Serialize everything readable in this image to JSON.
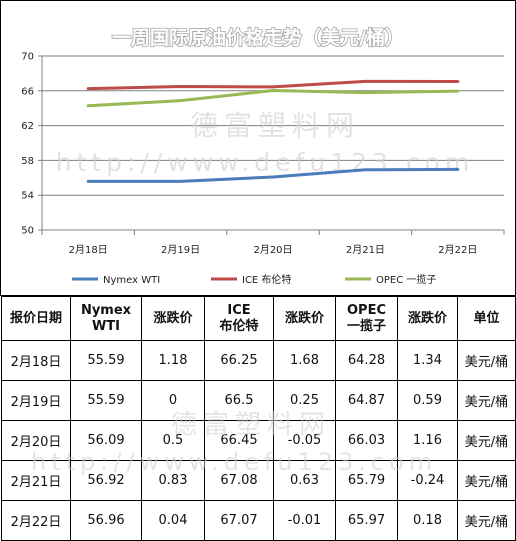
{
  "chart_data": {
    "type": "line",
    "title": "一周国际原油价格走势（美元/桶）",
    "categories": [
      "2月18日",
      "2月19日",
      "2月20日",
      "2月21日",
      "2月22日"
    ],
    "series": [
      {
        "name": "Nymex WTI",
        "color": "#4a7ebb",
        "values": [
          55.59,
          55.59,
          56.09,
          56.92,
          56.96
        ]
      },
      {
        "name": "ICE 布伦特",
        "color": "#be4b48",
        "values": [
          66.25,
          66.5,
          66.45,
          67.08,
          67.07
        ]
      },
      {
        "name": "OPEC 一揽子",
        "color": "#98b954",
        "values": [
          64.28,
          64.87,
          66.03,
          65.79,
          65.97
        ]
      }
    ],
    "yticks": [
      "50",
      "54",
      "58",
      "62",
      "66",
      "70"
    ],
    "ylim": [
      50,
      70
    ],
    "grid": true,
    "legend_position": "bottom"
  },
  "watermark": {
    "name": "德富塑料网",
    "url": "http://www.defu123.com"
  },
  "table": {
    "headers": [
      "报价日期",
      "Nymex WTI",
      "涨跌价",
      "ICE 布伦特",
      "涨跌价",
      "OPEC 一揽子",
      "涨跌价",
      "单位"
    ],
    "rows": [
      [
        "2月18日",
        "55.59",
        "1.18",
        "66.25",
        "1.68",
        "64.28",
        "1.34",
        "美元/桶"
      ],
      [
        "2月19日",
        "55.59",
        "0",
        "66.5",
        "0.25",
        "64.87",
        "0.59",
        "美元/桶"
      ],
      [
        "2月20日",
        "56.09",
        "0.5",
        "66.45",
        "-0.05",
        "66.03",
        "1.16",
        "美元/桶"
      ],
      [
        "2月21日",
        "56.92",
        "0.83",
        "67.08",
        "0.63",
        "65.79",
        "-0.24",
        "美元/桶"
      ],
      [
        "2月22日",
        "56.96",
        "0.04",
        "67.07",
        "-0.01",
        "65.97",
        "0.18",
        "美元/桶"
      ]
    ]
  }
}
